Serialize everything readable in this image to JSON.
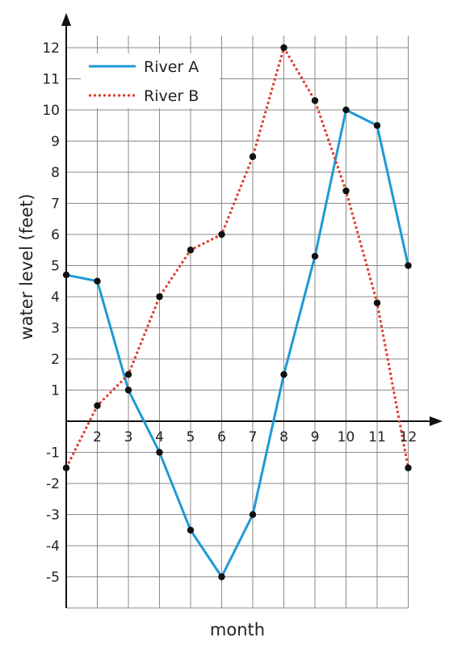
{
  "chart_data": {
    "type": "line",
    "xlabel": "month",
    "ylabel": "water level (feet)",
    "xlim": [
      1,
      12
    ],
    "ylim": [
      -6,
      12
    ],
    "grid": true,
    "legend_position": "top-left",
    "x_tick_labels": [
      "2",
      "3",
      "4",
      "5",
      "6",
      "7",
      "8",
      "9",
      "10",
      "11",
      "12"
    ],
    "y_tick_labels": [
      "12",
      "11",
      "10",
      "9",
      "8",
      "7",
      "6",
      "5",
      "4",
      "3",
      "2",
      "1",
      "-1",
      "-2",
      "-3",
      "-4",
      "-5"
    ],
    "series": [
      {
        "name": "River A",
        "style": "solid",
        "color": "#1e9ad6",
        "x": [
          1,
          2,
          3,
          4,
          5,
          6,
          7,
          8,
          9,
          10,
          11,
          12
        ],
        "y": [
          4.7,
          4.5,
          1,
          -1,
          -3.5,
          -5,
          -3,
          1.5,
          5.3,
          10,
          9.5,
          5
        ]
      },
      {
        "name": "River B",
        "style": "dotted",
        "color": "#e03c2f",
        "x": [
          1,
          2,
          3,
          4,
          5,
          6,
          7,
          8,
          9,
          10,
          11,
          12
        ],
        "y": [
          -1.5,
          0.5,
          1.5,
          4,
          5.5,
          6,
          8.5,
          12,
          10.3,
          7.4,
          3.8,
          -1.5
        ]
      }
    ]
  }
}
